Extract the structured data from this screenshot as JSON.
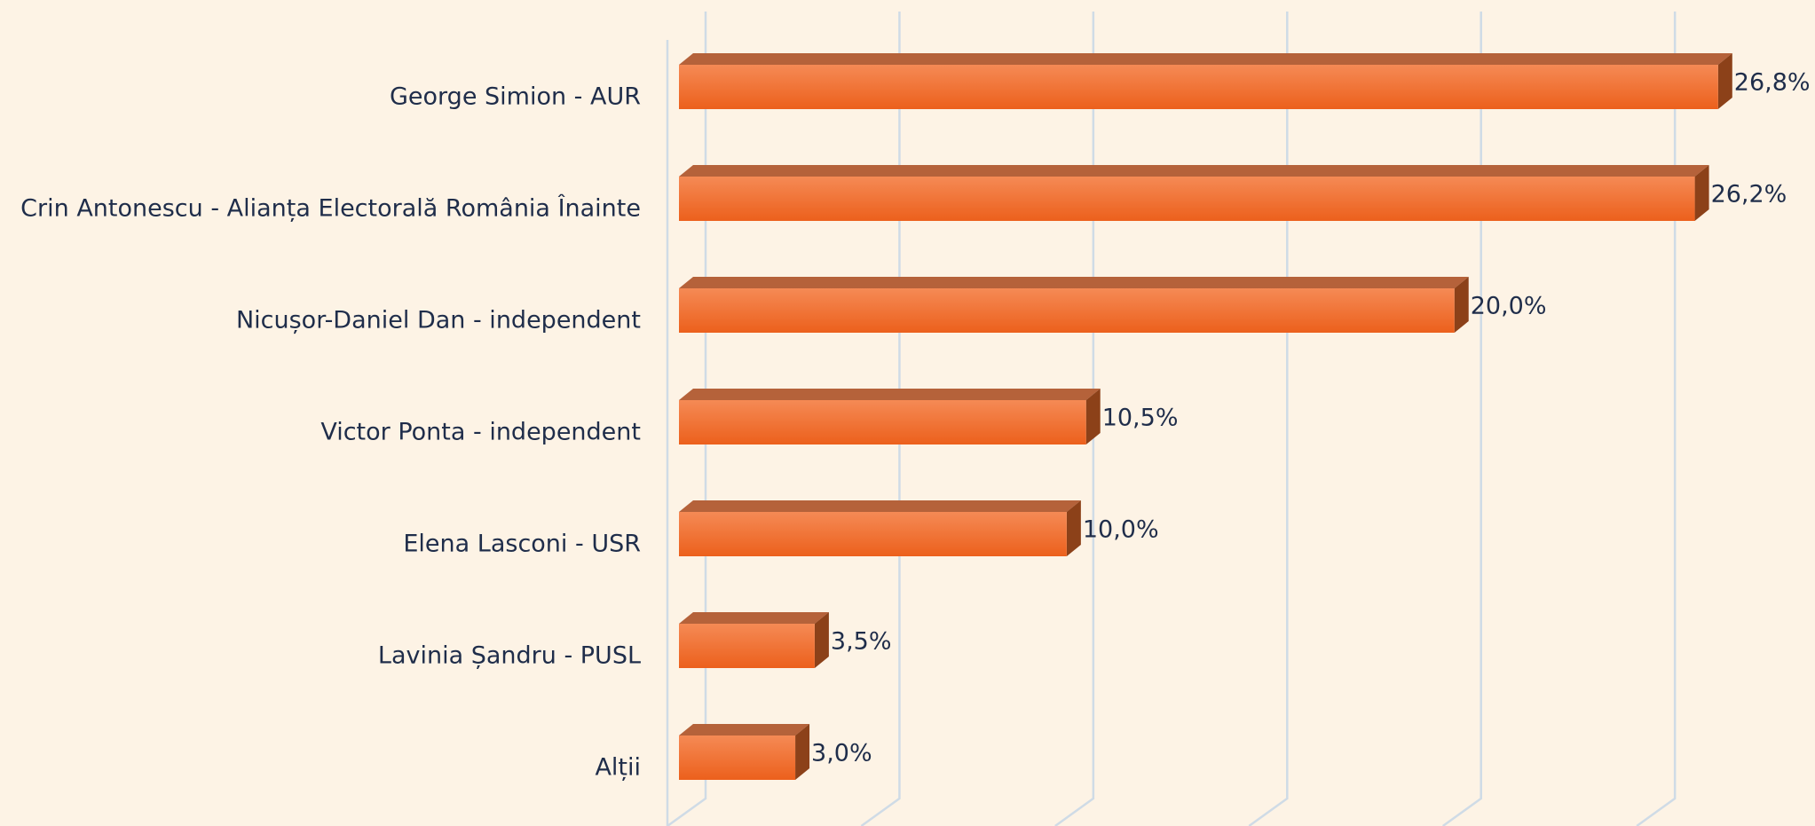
{
  "chart_data": {
    "type": "bar3d",
    "categories": [
      "George Simion - AUR",
      "Crin Antonescu - Alianța Electorală România Înainte",
      "Nicușor-Daniel Dan - independent",
      "Victor Ponta - independent",
      "Elena Lasconi - USR",
      "Lavinia Șandru - PUSL",
      "Alții"
    ],
    "values": [
      26.8,
      26.2,
      20.0,
      10.5,
      10.0,
      3.5,
      3.0
    ],
    "value_labels": [
      "26,8%",
      "26,2%",
      "20,0%",
      "10,5%",
      "10,0%",
      "3,5%",
      "3,0%"
    ],
    "color": "#ef6a28",
    "xlim": [
      0,
      29.3
    ],
    "xticks": [
      0,
      5,
      10,
      15,
      20,
      25
    ],
    "grid": true
  }
}
